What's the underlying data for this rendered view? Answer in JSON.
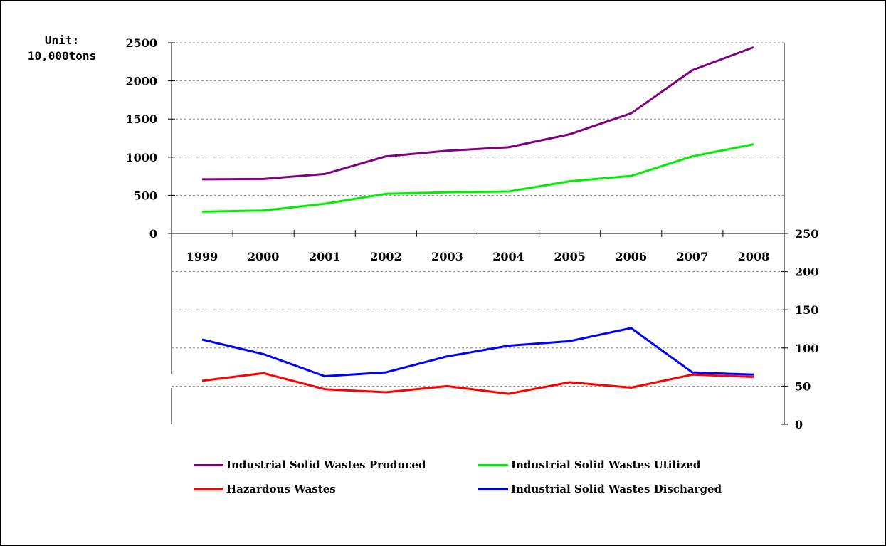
{
  "chart_data": [
    {
      "type": "line",
      "panel": "upper",
      "unit_label_line1": "Unit:",
      "unit_label_line2": "10,000tons",
      "ylim": [
        0,
        2500
      ],
      "yticks": [
        0,
        500,
        1000,
        1500,
        2000,
        2500
      ],
      "grid": true,
      "x": [
        "1999",
        "2000",
        "2001",
        "2002",
        "2003",
        "2004",
        "2005",
        "2006",
        "2007",
        "2008"
      ],
      "series": [
        {
          "name": "Industrial Solid Wastes Produced",
          "color": "#800080",
          "values": [
            710,
            715,
            780,
            1010,
            1085,
            1130,
            1300,
            1575,
            2140,
            2440
          ]
        },
        {
          "name": "Industrial Solid Wastes Utilized",
          "color": "#00ee00",
          "values": [
            285,
            300,
            390,
            520,
            540,
            550,
            685,
            755,
            1010,
            1170
          ]
        }
      ]
    },
    {
      "type": "line",
      "panel": "lower",
      "ylim": [
        0,
        250
      ],
      "yticks": [
        0,
        50,
        100,
        150,
        200,
        250
      ],
      "grid": true,
      "axis_side": "right",
      "x": [
        "1999",
        "2000",
        "2001",
        "2002",
        "2003",
        "2004",
        "2005",
        "2006",
        "2007",
        "2008"
      ],
      "series": [
        {
          "name": "Hazardous Wastes",
          "color": "#ff0000",
          "values": [
            57,
            67,
            46,
            42,
            50,
            40,
            55,
            48,
            65,
            62
          ]
        },
        {
          "name": "Industrial Solid Wastes Discharged",
          "color": "#0000ff",
          "values": [
            111,
            92,
            63,
            68,
            89,
            103,
            109,
            126,
            68,
            65
          ]
        }
      ]
    }
  ],
  "legend": {
    "items": [
      {
        "label": "Industrial Solid Wastes Produced",
        "color": "#800080"
      },
      {
        "label": "Industrial Solid Wastes Utilized",
        "color": "#00ee00"
      },
      {
        "label": "Hazardous Wastes",
        "color": "#ff0000"
      },
      {
        "label": "Industrial Solid Wastes Discharged",
        "color": "#0000ff"
      }
    ]
  }
}
